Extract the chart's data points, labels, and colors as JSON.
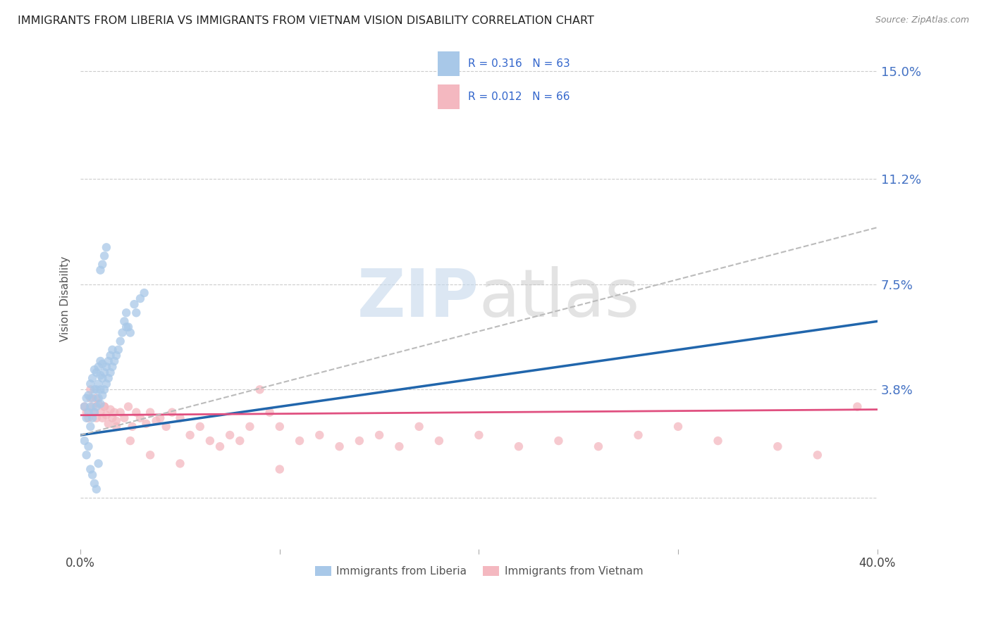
{
  "title": "IMMIGRANTS FROM LIBERIA VS IMMIGRANTS FROM VIETNAM VISION DISABILITY CORRELATION CHART",
  "source": "Source: ZipAtlas.com",
  "ylabel": "Vision Disability",
  "yticks": [
    0.0,
    0.038,
    0.075,
    0.112,
    0.15
  ],
  "ytick_labels": [
    "",
    "3.8%",
    "7.5%",
    "11.2%",
    "15.0%"
  ],
  "xlim": [
    0.0,
    0.4
  ],
  "ylim": [
    -0.018,
    0.158
  ],
  "liberia_color": "#a8c8e8",
  "vietnam_color": "#f4b8c0",
  "liberia_line_color": "#2166ac",
  "vietnam_line_color": "#e05080",
  "trend_line_color": "#bbbbbb",
  "R_liberia": 0.316,
  "N_liberia": 63,
  "R_vietnam": 0.012,
  "N_vietnam": 66,
  "legend_label_liberia": "Immigrants from Liberia",
  "legend_label_vietnam": "Immigrants from Vietnam",
  "background_color": "#ffffff",
  "watermark_zip": "ZIP",
  "watermark_atlas": "atlas",
  "liberia_x": [
    0.002,
    0.003,
    0.003,
    0.004,
    0.004,
    0.005,
    0.005,
    0.005,
    0.006,
    0.006,
    0.006,
    0.007,
    0.007,
    0.007,
    0.008,
    0.008,
    0.008,
    0.009,
    0.009,
    0.009,
    0.01,
    0.01,
    0.01,
    0.01,
    0.011,
    0.011,
    0.011,
    0.012,
    0.012,
    0.013,
    0.013,
    0.014,
    0.014,
    0.015,
    0.015,
    0.016,
    0.016,
    0.017,
    0.018,
    0.019,
    0.02,
    0.021,
    0.022,
    0.023,
    0.024,
    0.025,
    0.027,
    0.028,
    0.03,
    0.032,
    0.002,
    0.003,
    0.004,
    0.005,
    0.006,
    0.007,
    0.008,
    0.009,
    0.01,
    0.011,
    0.012,
    0.013,
    0.023
  ],
  "liberia_y": [
    0.032,
    0.028,
    0.035,
    0.03,
    0.036,
    0.025,
    0.032,
    0.04,
    0.028,
    0.035,
    0.042,
    0.03,
    0.038,
    0.045,
    0.032,
    0.038,
    0.044,
    0.035,
    0.04,
    0.046,
    0.033,
    0.038,
    0.043,
    0.048,
    0.036,
    0.042,
    0.047,
    0.038,
    0.044,
    0.04,
    0.046,
    0.042,
    0.048,
    0.044,
    0.05,
    0.046,
    0.052,
    0.048,
    0.05,
    0.052,
    0.055,
    0.058,
    0.062,
    0.065,
    0.06,
    0.058,
    0.068,
    0.065,
    0.07,
    0.072,
    0.02,
    0.015,
    0.018,
    0.01,
    0.008,
    0.005,
    0.003,
    0.012,
    0.08,
    0.082,
    0.085,
    0.088,
    0.06
  ],
  "vietnam_x": [
    0.002,
    0.003,
    0.004,
    0.005,
    0.006,
    0.007,
    0.008,
    0.009,
    0.01,
    0.011,
    0.012,
    0.013,
    0.014,
    0.015,
    0.016,
    0.017,
    0.018,
    0.02,
    0.022,
    0.024,
    0.026,
    0.028,
    0.03,
    0.033,
    0.035,
    0.038,
    0.04,
    0.043,
    0.046,
    0.05,
    0.055,
    0.06,
    0.065,
    0.07,
    0.075,
    0.08,
    0.085,
    0.09,
    0.095,
    0.1,
    0.11,
    0.12,
    0.13,
    0.14,
    0.15,
    0.16,
    0.17,
    0.18,
    0.2,
    0.22,
    0.24,
    0.26,
    0.28,
    0.3,
    0.32,
    0.35,
    0.37,
    0.39,
    0.005,
    0.008,
    0.012,
    0.018,
    0.025,
    0.035,
    0.05,
    0.1
  ],
  "vietnam_y": [
    0.032,
    0.03,
    0.028,
    0.035,
    0.032,
    0.03,
    0.028,
    0.033,
    0.03,
    0.028,
    0.032,
    0.029,
    0.026,
    0.031,
    0.028,
    0.03,
    0.027,
    0.03,
    0.028,
    0.032,
    0.025,
    0.03,
    0.028,
    0.026,
    0.03,
    0.027,
    0.028,
    0.025,
    0.03,
    0.028,
    0.022,
    0.025,
    0.02,
    0.018,
    0.022,
    0.02,
    0.025,
    0.038,
    0.03,
    0.025,
    0.02,
    0.022,
    0.018,
    0.02,
    0.022,
    0.018,
    0.025,
    0.02,
    0.022,
    0.018,
    0.02,
    0.018,
    0.022,
    0.025,
    0.02,
    0.018,
    0.015,
    0.032,
    0.038,
    0.035,
    0.032,
    0.025,
    0.02,
    0.015,
    0.012,
    0.01
  ],
  "liberia_trend_x": [
    0.0,
    0.4
  ],
  "liberia_trend_y": [
    0.022,
    0.062
  ],
  "vietnam_trend_x": [
    0.0,
    0.4
  ],
  "vietnam_trend_y": [
    0.029,
    0.031
  ],
  "dashed_trend_x": [
    0.0,
    0.4
  ],
  "dashed_trend_y": [
    0.022,
    0.095
  ]
}
